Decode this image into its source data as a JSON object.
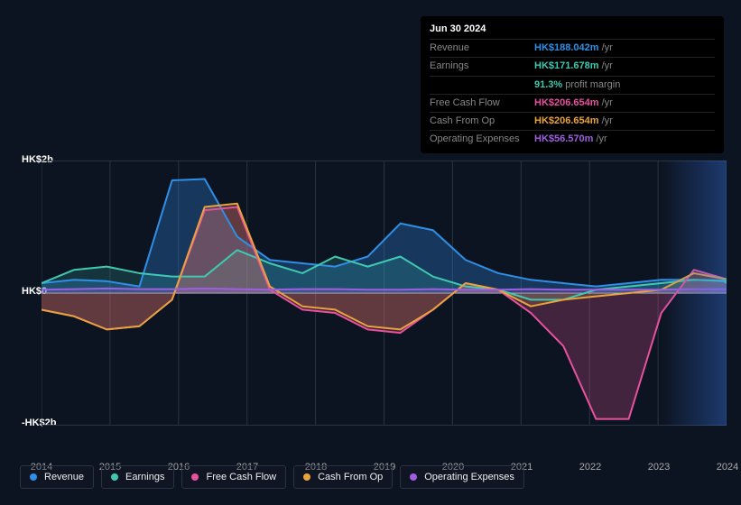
{
  "tooltip": {
    "date": "Jun 30 2024",
    "rows": [
      {
        "label": "Revenue",
        "value": "HK$188.042m",
        "unit": "/yr",
        "color": "#2f8fe6"
      },
      {
        "label": "Earnings",
        "value": "HK$171.678m",
        "unit": "/yr",
        "color": "#3fc9b0"
      },
      {
        "label": "",
        "value": "91.3%",
        "unit": "profit margin",
        "color": "#3fc9b0"
      },
      {
        "label": "Free Cash Flow",
        "value": "HK$206.654m",
        "unit": "/yr",
        "color": "#e6529c"
      },
      {
        "label": "Cash From Op",
        "value": "HK$206.654m",
        "unit": "/yr",
        "color": "#e8a33d"
      },
      {
        "label": "Operating Expenses",
        "value": "HK$56.570m",
        "unit": "/yr",
        "color": "#9d5fe0"
      }
    ]
  },
  "chart": {
    "type": "area",
    "background_color": "#0d1421",
    "grid_color": "#2a3342",
    "years": [
      2014,
      2015,
      2016,
      2017,
      2018,
      2019,
      2020,
      2021,
      2022,
      2023,
      2024
    ],
    "ylim": [
      -2,
      2
    ],
    "y_ticks": [
      {
        "v": 2,
        "label": "HK$2b"
      },
      {
        "v": 0,
        "label": "HK$0"
      },
      {
        "v": -2,
        "label": "-HK$2b"
      }
    ],
    "series": [
      {
        "name": "Revenue",
        "color": "#2f8fe6",
        "fill": "rgba(47,143,230,0.30)",
        "values": [
          0.15,
          0.2,
          0.18,
          0.1,
          1.7,
          1.72,
          0.85,
          0.5,
          0.45,
          0.4,
          0.55,
          1.05,
          0.95,
          0.5,
          0.3,
          0.2,
          0.15,
          0.1,
          0.15,
          0.2,
          0.2,
          0.19
        ]
      },
      {
        "name": "Earnings",
        "color": "#3fc9b0",
        "fill": "rgba(63,201,176,0.18)",
        "values": [
          0.15,
          0.35,
          0.4,
          0.3,
          0.25,
          0.25,
          0.65,
          0.45,
          0.3,
          0.55,
          0.4,
          0.55,
          0.25,
          0.1,
          0.05,
          -0.1,
          -0.1,
          0.05,
          0.1,
          0.15,
          0.2,
          0.18
        ]
      },
      {
        "name": "Free Cash Flow",
        "color": "#e6529c",
        "fill": "rgba(230,82,156,0.25)",
        "values": [
          -0.25,
          -0.35,
          -0.55,
          -0.5,
          -0.1,
          1.25,
          1.3,
          0.05,
          -0.25,
          -0.3,
          -0.55,
          -0.6,
          -0.25,
          0.15,
          0.05,
          -0.3,
          -0.8,
          -1.9,
          -1.9,
          -0.3,
          0.35,
          0.21
        ]
      },
      {
        "name": "Cash From Op",
        "color": "#e8a33d",
        "fill": "rgba(232,163,61,0.18)",
        "values": [
          -0.25,
          -0.35,
          -0.55,
          -0.5,
          -0.1,
          1.3,
          1.35,
          0.1,
          -0.2,
          -0.25,
          -0.5,
          -0.55,
          -0.25,
          0.15,
          0.05,
          -0.2,
          -0.1,
          -0.05,
          0.0,
          0.05,
          0.3,
          0.21
        ]
      },
      {
        "name": "Operating Expenses",
        "color": "#9d5fe0",
        "fill": "rgba(157,95,224,0.25)",
        "values": [
          0.05,
          0.06,
          0.07,
          0.06,
          0.06,
          0.07,
          0.06,
          0.05,
          0.06,
          0.06,
          0.05,
          0.05,
          0.06,
          0.05,
          0.05,
          0.06,
          0.05,
          0.05,
          0.05,
          0.05,
          0.06,
          0.06
        ]
      }
    ],
    "legend": [
      "Revenue",
      "Earnings",
      "Free Cash Flow",
      "Cash From Op",
      "Operating Expenses"
    ]
  }
}
